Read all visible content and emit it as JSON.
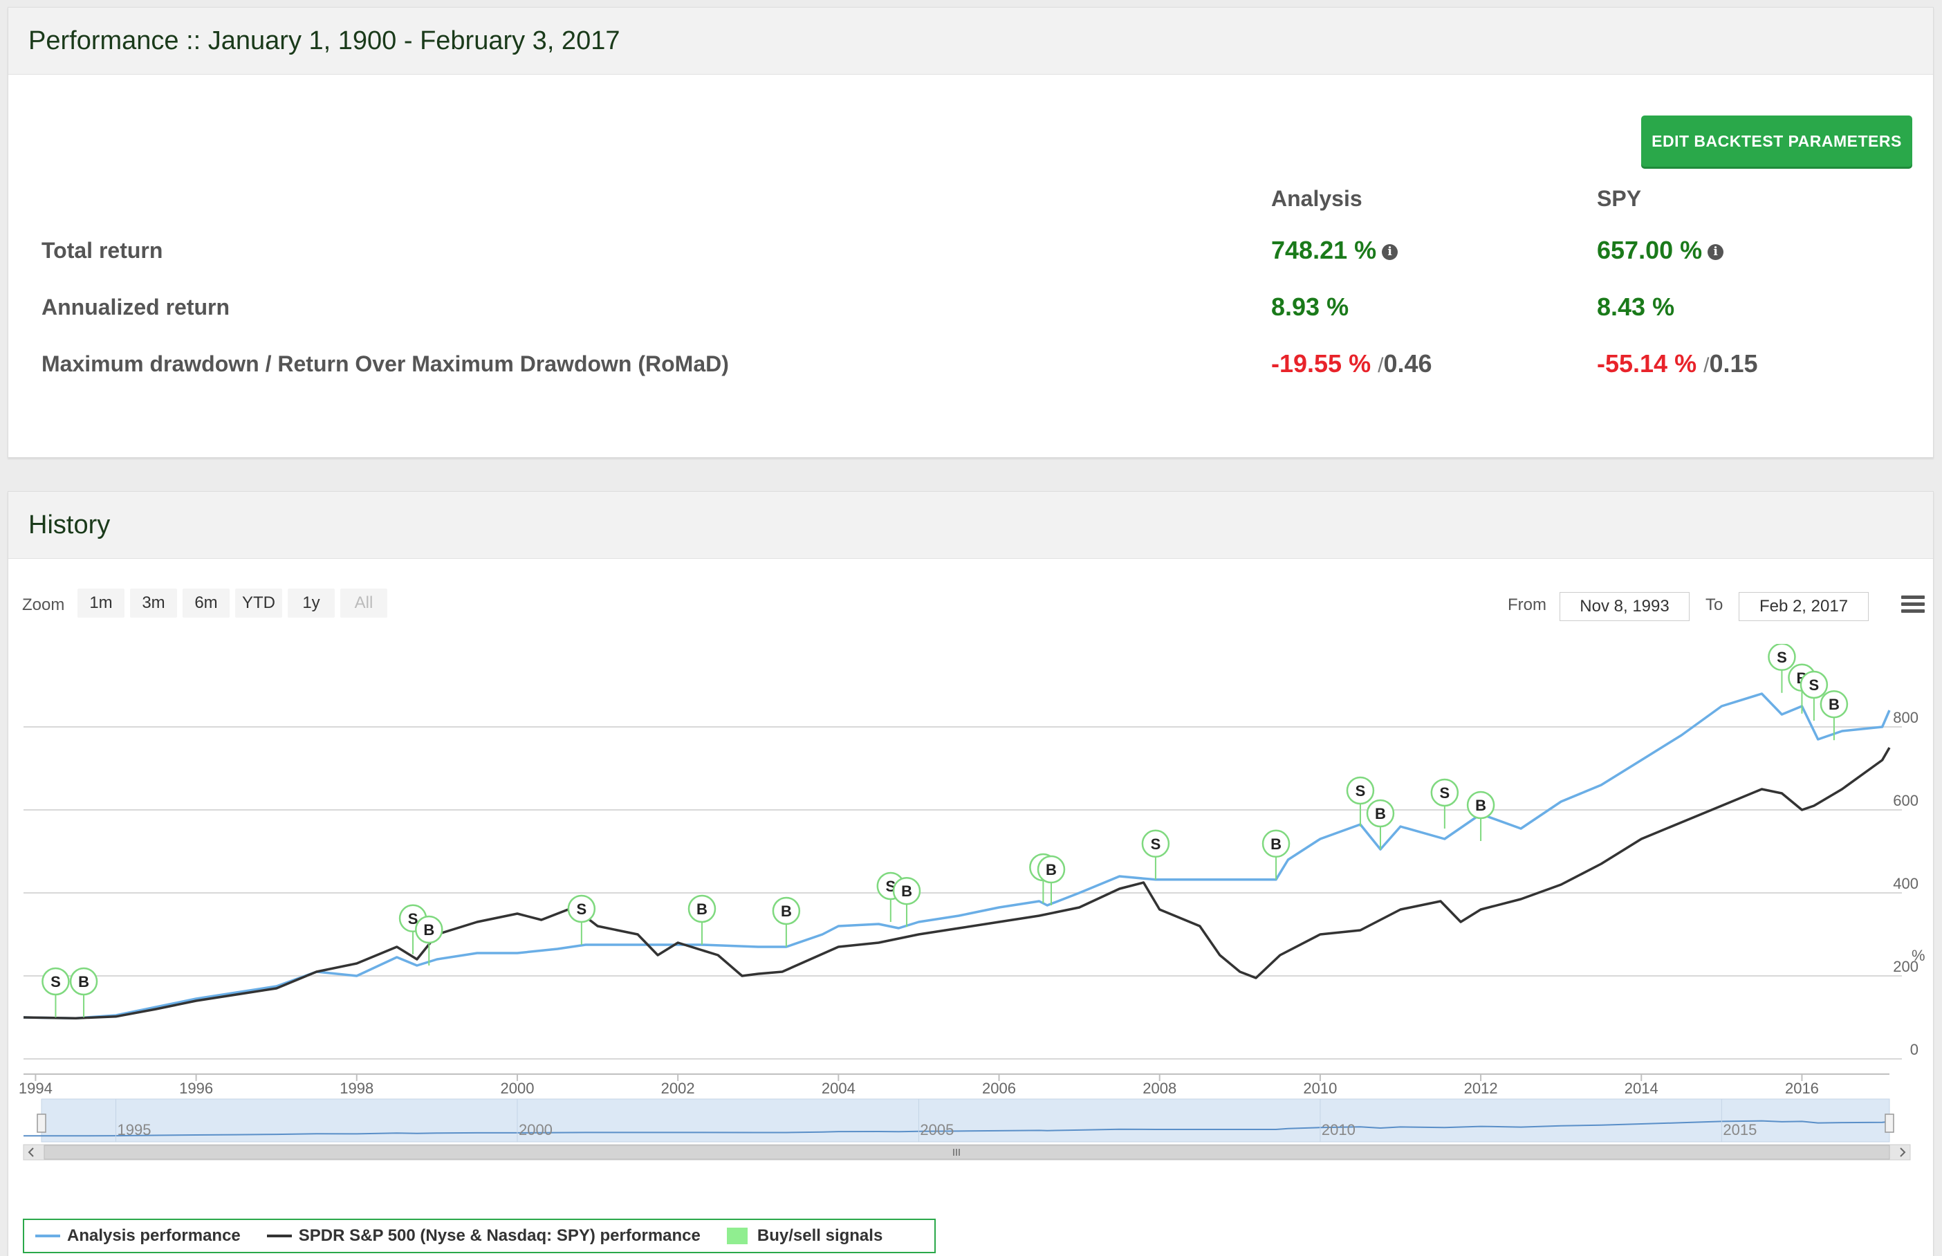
{
  "performance": {
    "title": "Performance :: January 1, 1900 - February 3, 2017",
    "edit_button": "EDIT BACKTEST PARAMETERS",
    "columns": [
      "Analysis",
      "SPY"
    ],
    "rows": [
      {
        "label": "Total return",
        "analysis": "748.21 %",
        "spy": "657.00 %"
      },
      {
        "label": "Annualized return",
        "analysis": "8.93 %",
        "spy": "8.43 %"
      },
      {
        "label": "Maximum drawdown / Return Over Maximum Drawdown (RoMaD)",
        "analysis": "-19.55 %",
        "analysis_romad": "0.46",
        "spy": "-55.14 %",
        "spy_romad": "0.15"
      }
    ],
    "romad_separator": "/",
    "info_icon": "info-circle-icon"
  },
  "history": {
    "title": "History",
    "zoom_label": "Zoom",
    "zoom_buttons": [
      "1m",
      "3m",
      "6m",
      "YTD",
      "1y",
      "All"
    ],
    "from_label": "From",
    "from_value": "Nov 8, 1993",
    "to_label": "To",
    "to_value": "Feb 2, 2017",
    "menu_icon": "hamburger-menu-icon",
    "legend": [
      {
        "name": "Analysis performance",
        "color": "#6aaee6"
      },
      {
        "name": "SPDR S&P 500 (Nyse & Nasdaq: SPY) performance",
        "color": "#333333"
      },
      {
        "name": "Buy/sell signals",
        "color": "#90ee90"
      }
    ]
  },
  "chart_data": {
    "type": "line",
    "ylabel": "%",
    "ylim": [
      0,
      900
    ],
    "yticks": [
      0,
      200,
      400,
      600,
      800
    ],
    "xlim": [
      1993.85,
      2017.09
    ],
    "xticks": [
      1994,
      1996,
      1998,
      2000,
      2002,
      2004,
      2006,
      2008,
      2010,
      2012,
      2014,
      2016
    ],
    "navigator_ticks": [
      1995,
      2000,
      2005,
      2010,
      2015
    ],
    "grid": true,
    "series": [
      {
        "name": "Analysis performance",
        "color": "#6aaee6",
        "x": [
          1993.85,
          1994.5,
          1995.0,
          1995.5,
          1996.0,
          1996.5,
          1997.0,
          1997.5,
          1998.0,
          1998.5,
          1998.75,
          1999.0,
          1999.5,
          2000.0,
          2000.5,
          2000.85,
          2001.5,
          2002.0,
          2002.3,
          2003.0,
          2003.35,
          2003.8,
          2004.0,
          2004.5,
          2004.75,
          2005.0,
          2005.5,
          2006.0,
          2006.5,
          2006.6,
          2007.0,
          2007.5,
          2007.95,
          2008.5,
          2009.0,
          2009.45,
          2009.6,
          2010.0,
          2010.5,
          2010.75,
          2011.0,
          2011.55,
          2012.0,
          2012.5,
          2013.0,
          2013.5,
          2014.0,
          2014.5,
          2015.0,
          2015.5,
          2015.75,
          2016.0,
          2016.2,
          2016.5,
          2017.0,
          2017.09
        ],
        "y": [
          100,
          98,
          105,
          125,
          145,
          160,
          175,
          210,
          200,
          245,
          225,
          240,
          255,
          255,
          265,
          275,
          275,
          275,
          275,
          270,
          270,
          300,
          320,
          325,
          315,
          330,
          345,
          365,
          380,
          370,
          400,
          440,
          432,
          432,
          432,
          432,
          480,
          530,
          565,
          505,
          560,
          530,
          590,
          555,
          620,
          660,
          720,
          780,
          850,
          880,
          830,
          850,
          770,
          790,
          800,
          840
        ]
      },
      {
        "name": "SPDR S&P 500 (Nyse & Nasdaq: SPY) performance",
        "color": "#333333",
        "x": [
          1993.85,
          1994.5,
          1995.0,
          1995.5,
          1996.0,
          1996.5,
          1997.0,
          1997.5,
          1998.0,
          1998.5,
          1998.75,
          1999.0,
          1999.5,
          2000.0,
          2000.3,
          2000.7,
          2001.0,
          2001.5,
          2001.75,
          2002.0,
          2002.5,
          2002.8,
          2003.0,
          2003.3,
          2004.0,
          2004.5,
          2005.0,
          2005.5,
          2006.0,
          2006.5,
          2007.0,
          2007.5,
          2007.8,
          2008.0,
          2008.5,
          2008.75,
          2009.0,
          2009.2,
          2009.5,
          2010.0,
          2010.5,
          2011.0,
          2011.5,
          2011.75,
          2012.0,
          2012.5,
          2013.0,
          2013.5,
          2014.0,
          2014.5,
          2015.0,
          2015.5,
          2015.75,
          2016.0,
          2016.15,
          2016.5,
          2017.0,
          2017.09
        ],
        "y": [
          100,
          98,
          102,
          120,
          140,
          155,
          170,
          210,
          230,
          270,
          240,
          300,
          330,
          350,
          335,
          365,
          320,
          300,
          250,
          280,
          250,
          200,
          205,
          210,
          270,
          280,
          300,
          315,
          330,
          345,
          365,
          410,
          425,
          360,
          320,
          250,
          210,
          195,
          250,
          300,
          310,
          360,
          380,
          330,
          360,
          385,
          420,
          470,
          530,
          570,
          610,
          650,
          640,
          600,
          610,
          650,
          720,
          750
        ]
      }
    ],
    "signals": [
      {
        "label": "S",
        "x": 1994.25,
        "y": 100
      },
      {
        "label": "B",
        "x": 1994.6,
        "y": 100
      },
      {
        "label": "S",
        "x": 1998.7,
        "y": 252
      },
      {
        "label": "B",
        "x": 1998.9,
        "y": 225
      },
      {
        "label": "S",
        "x": 2000.8,
        "y": 275
      },
      {
        "label": "B",
        "x": 2002.3,
        "y": 275
      },
      {
        "label": "B",
        "x": 2003.35,
        "y": 270
      },
      {
        "label": "S",
        "x": 2004.65,
        "y": 330
      },
      {
        "label": "B",
        "x": 2004.85,
        "y": 318
      },
      {
        "label": "S",
        "x": 2006.55,
        "y": 375
      },
      {
        "label": "B",
        "x": 2006.65,
        "y": 370
      },
      {
        "label": "S",
        "x": 2007.95,
        "y": 432
      },
      {
        "label": "B",
        "x": 2009.45,
        "y": 432
      },
      {
        "label": "S",
        "x": 2010.5,
        "y": 560
      },
      {
        "label": "B",
        "x": 2010.75,
        "y": 505
      },
      {
        "label": "S",
        "x": 2011.55,
        "y": 555
      },
      {
        "label": "B",
        "x": 2012.0,
        "y": 525
      },
      {
        "label": "S",
        "x": 2015.75,
        "y": 882
      },
      {
        "label": "B",
        "x": 2016.0,
        "y": 832
      },
      {
        "label": "S",
        "x": 2016.15,
        "y": 815
      },
      {
        "label": "B",
        "x": 2016.4,
        "y": 768
      }
    ]
  }
}
